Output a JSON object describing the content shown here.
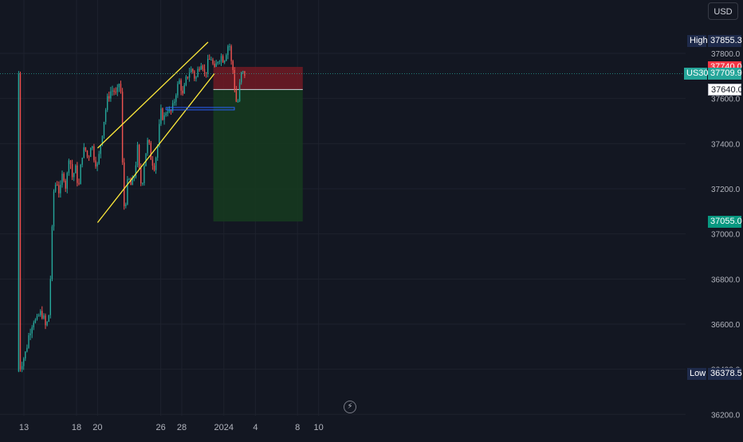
{
  "chart_data": {
    "type": "candlestick",
    "symbol": "US30",
    "currency": "USD",
    "y_axis": {
      "min": 36200,
      "max": 38000,
      "ticks": [
        36200.0,
        36400.0,
        36600.0,
        36800.0,
        37000.0,
        37200.0,
        37400.0,
        37600.0,
        37800.0
      ],
      "tick_labels": [
        "36200.0",
        "36400.0",
        "36600.0",
        "36800.0",
        "37000.0",
        "37200.0",
        "37400.0",
        "37600.0",
        "37800.0"
      ]
    },
    "x_axis": {
      "tick_labels": [
        "13",
        "18",
        "20",
        "26",
        "28",
        "2024",
        "4",
        "8",
        "10"
      ],
      "tick_days": [
        0,
        5,
        7,
        13,
        15,
        19,
        22,
        26,
        28
      ]
    },
    "price_path": [
      [
        -0.5,
        36390
      ],
      [
        0.2,
        36480
      ],
      [
        0.5,
        36560
      ],
      [
        0.9,
        36620
      ],
      [
        1.2,
        36610
      ],
      [
        1.5,
        36650
      ],
      [
        1.8,
        36640
      ],
      [
        2.1,
        36580
      ],
      [
        2.4,
        36650
      ],
      [
        2.6,
        36900
      ],
      [
        2.8,
        37180
      ],
      [
        3.1,
        37240
      ],
      [
        3.4,
        37170
      ],
      [
        3.7,
        37280
      ],
      [
        4.0,
        37200
      ],
      [
        4.3,
        37360
      ],
      [
        4.6,
        37250
      ],
      [
        4.9,
        37290
      ],
      [
        5.2,
        37200
      ],
      [
        5.5,
        37350
      ],
      [
        5.8,
        37380
      ],
      [
        6.1,
        37330
      ],
      [
        6.4,
        37410
      ],
      [
        6.7,
        37330
      ],
      [
        7.0,
        37300
      ],
      [
        7.3,
        37400
      ],
      [
        7.6,
        37500
      ],
      [
        7.9,
        37590
      ],
      [
        8.2,
        37630
      ],
      [
        8.5,
        37640
      ],
      [
        8.8,
        37610
      ],
      [
        9.1,
        37680
      ],
      [
        9.3,
        37580
      ],
      [
        9.4,
        37150
      ],
      [
        9.6,
        37110
      ],
      [
        9.9,
        37250
      ],
      [
        10.2,
        37210
      ],
      [
        10.5,
        37260
      ],
      [
        10.8,
        37380
      ],
      [
        11.0,
        37250
      ],
      [
        11.2,
        37210
      ],
      [
        11.5,
        37340
      ],
      [
        11.8,
        37420
      ],
      [
        12.1,
        37330
      ],
      [
        12.4,
        37300
      ],
      [
        12.7,
        37390
      ],
      [
        13.0,
        37540
      ],
      [
        13.3,
        37510
      ],
      [
        13.6,
        37560
      ],
      [
        13.9,
        37530
      ],
      [
        14.2,
        37570
      ],
      [
        14.5,
        37640
      ],
      [
        14.8,
        37680
      ],
      [
        15.1,
        37610
      ],
      [
        15.4,
        37680
      ],
      [
        15.7,
        37720
      ],
      [
        16.0,
        37730
      ],
      [
        16.3,
        37680
      ],
      [
        16.6,
        37740
      ],
      [
        16.9,
        37770
      ],
      [
        17.2,
        37700
      ],
      [
        17.5,
        37760
      ],
      [
        17.8,
        37780
      ],
      [
        18.1,
        37720
      ],
      [
        18.4,
        37770
      ],
      [
        18.7,
        37790
      ],
      [
        19.0,
        37770
      ],
      [
        19.3,
        37820
      ],
      [
        19.5,
        37855
      ],
      [
        19.7,
        37760
      ],
      [
        19.9,
        37720
      ],
      [
        20.1,
        37600
      ],
      [
        20.3,
        37570
      ],
      [
        20.5,
        37660
      ],
      [
        20.7,
        37720
      ],
      [
        20.9,
        37705
      ],
      [
        21.0,
        37710
      ]
    ],
    "extremes": {
      "high": 37855.3,
      "low": 36378.5,
      "high_label": "High",
      "low_label": "Low"
    },
    "channel": {
      "upper": [
        [
          7.0,
          37380
        ],
        [
          17.5,
          37850
        ]
      ],
      "lower": [
        [
          7.0,
          37050
        ],
        [
          18.1,
          37710
        ]
      ]
    },
    "support_line": {
      "price": 37555,
      "from_day": 13.5,
      "to_day": 20.0
    },
    "position": {
      "start_day": 18.0,
      "end_day": 26.5,
      "entry": 37640.0,
      "stop": 37740.0,
      "target": 37055.0
    },
    "price_labels": {
      "stop": "37740.0",
      "current": "37709.9",
      "entry": "37640.0",
      "target": "37055.0",
      "high": "37855.3",
      "low": "36378.5"
    },
    "current_price": 37709.9,
    "colors": {
      "background": "#131722",
      "grid": "#1e222d",
      "axis_text": "#b2b5be",
      "up": "#26a69a",
      "down": "#ef5350",
      "channel": "#ffeb3b",
      "support": "#2962ff",
      "stop_zone": "#6b1a23",
      "target_zone": "#16391f",
      "stop_tag": "#f23645",
      "target_tag": "#089981",
      "current_tag": "#26a69a",
      "extreme_tag": "#1e2a4a"
    }
  }
}
